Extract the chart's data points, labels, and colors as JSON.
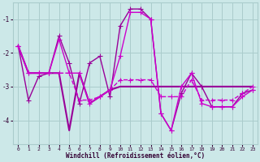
{
  "x": [
    0,
    1,
    2,
    3,
    4,
    5,
    6,
    7,
    8,
    9,
    10,
    11,
    12,
    13,
    14,
    15,
    16,
    17,
    18,
    19,
    20,
    21,
    22,
    23
  ],
  "series": [
    {
      "y": [
        -1.8,
        -3.4,
        -2.7,
        -2.6,
        -1.5,
        -2.3,
        -3.5,
        -2.3,
        -2.1,
        -3.3,
        -1.2,
        -0.7,
        -0.7,
        -1.0,
        -3.8,
        -4.3,
        -3.2,
        -2.6,
        -3.0,
        -3.6,
        -3.6,
        -3.6,
        -3.2,
        -3.1
      ],
      "color": "#990099",
      "ls": "-",
      "lw": 1.0,
      "marker": "+"
    },
    {
      "y": [
        -1.8,
        -2.6,
        -2.6,
        -2.6,
        -2.6,
        -4.3,
        -2.6,
        -3.5,
        -3.3,
        -3.1,
        -3.0,
        -3.0,
        -3.0,
        -3.0,
        -3.0,
        -3.0,
        -3.0,
        -3.0,
        -3.0,
        -3.0,
        -3.0,
        -3.0,
        -3.0,
        -3.0
      ],
      "color": "#990099",
      "ls": "-",
      "lw": 1.5,
      "marker": null
    },
    {
      "y": [
        -1.8,
        -2.6,
        -2.6,
        -2.6,
        -1.6,
        -2.6,
        -2.6,
        -3.5,
        -3.3,
        -3.1,
        -2.1,
        -0.8,
        -0.8,
        -1.0,
        -3.8,
        -4.3,
        -3.0,
        -2.6,
        -3.5,
        -3.6,
        -3.6,
        -3.6,
        -3.3,
        -3.1
      ],
      "color": "#cc00cc",
      "ls": "-",
      "lw": 1.0,
      "marker": "+"
    },
    {
      "y": [
        -1.8,
        -2.6,
        -2.6,
        -2.6,
        -2.6,
        -2.6,
        -3.4,
        -3.4,
        -3.3,
        -3.1,
        -2.8,
        -2.8,
        -2.8,
        -2.8,
        -3.3,
        -3.3,
        -3.3,
        -2.8,
        -3.4,
        -3.4,
        -3.4,
        -3.4,
        -3.2,
        -3.0
      ],
      "color": "#cc00cc",
      "ls": "--",
      "lw": 1.0,
      "marker": "+"
    }
  ],
  "bg_color": "#cce8e8",
  "grid_color": "#aacccc",
  "xlabel": "Windchill (Refroidissement éolien,°C)",
  "ylim": [
    -4.7,
    -0.5
  ],
  "xlim": [
    -0.5,
    23.5
  ],
  "yticks": [
    -4,
    -3,
    -2,
    -1
  ],
  "xticks": [
    0,
    1,
    2,
    3,
    4,
    5,
    6,
    7,
    8,
    9,
    10,
    11,
    12,
    13,
    14,
    15,
    16,
    17,
    18,
    19,
    20,
    21,
    22,
    23
  ],
  "figsize": [
    3.2,
    2.0
  ],
  "dpi": 100
}
